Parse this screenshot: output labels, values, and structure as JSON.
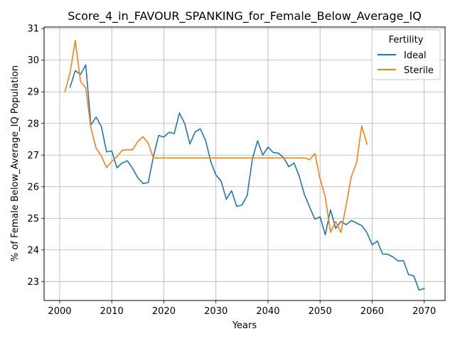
{
  "chart_data": {
    "type": "line",
    "title": "Score_4_in_FAVOUR_SPANKING_for_Female_Below_Average_IQ",
    "xlabel": "Years",
    "ylabel": "% of Female Below_Average_IQ Population",
    "xlim": [
      1997,
      2074
    ],
    "ylim": [
      22.4,
      31.05
    ],
    "xticks": [
      2000,
      2010,
      2020,
      2030,
      2040,
      2050,
      2060,
      2070
    ],
    "yticks": [
      23,
      24,
      25,
      26,
      27,
      28,
      29,
      30,
      31
    ],
    "grid": true,
    "legend": {
      "title": "Fertility",
      "placement": "top-right"
    },
    "series": [
      {
        "name": "Ideal",
        "color": "#1f77b4",
        "x": [
          2002,
          2003,
          2004,
          2005,
          2006,
          2007,
          2008,
          2009,
          2010,
          2011,
          2012,
          2013,
          2014,
          2015,
          2016,
          2017,
          2018,
          2019,
          2020,
          2021,
          2022,
          2023,
          2024,
          2025,
          2026,
          2027,
          2028,
          2029,
          2030,
          2031,
          2032,
          2033,
          2034,
          2035,
          2036,
          2037,
          2038,
          2039,
          2040,
          2041,
          2042,
          2043,
          2044,
          2045,
          2046,
          2047,
          2048,
          2049,
          2050,
          2051,
          2052,
          2053,
          2054,
          2055,
          2056,
          2057,
          2058,
          2059,
          2060,
          2061,
          2062,
          2063,
          2064,
          2065,
          2066,
          2067,
          2068,
          2069,
          2070
        ],
        "y": [
          29.15,
          29.67,
          29.55,
          29.85,
          27.95,
          28.2,
          27.9,
          27.1,
          27.13,
          26.6,
          26.75,
          26.82,
          26.58,
          26.28,
          26.1,
          26.13,
          26.95,
          27.62,
          27.57,
          27.72,
          27.68,
          28.33,
          28.0,
          27.35,
          27.73,
          27.83,
          27.47,
          26.8,
          26.37,
          26.18,
          25.6,
          25.87,
          25.38,
          25.42,
          25.72,
          26.88,
          27.45,
          27.0,
          27.25,
          27.08,
          27.06,
          26.92,
          26.63,
          26.75,
          26.33,
          25.75,
          25.35,
          24.97,
          25.05,
          24.48,
          25.27,
          24.68,
          24.9,
          24.8,
          24.93,
          24.85,
          24.77,
          24.55,
          24.16,
          24.28,
          23.87,
          23.86,
          23.78,
          23.65,
          23.66,
          23.22,
          23.18,
          22.73,
          22.78
        ]
      },
      {
        "name": "Sterile",
        "color": "#ff7f0e",
        "x": [
          2001,
          2002,
          2003,
          2004,
          2005,
          2006,
          2007,
          2008,
          2009,
          2010,
          2011,
          2012,
          2013,
          2014,
          2015,
          2016,
          2017,
          2018,
          2019,
          2020,
          2021,
          2022,
          2023,
          2024,
          2025,
          2026,
          2027,
          2028,
          2029,
          2030,
          2031,
          2032,
          2033,
          2034,
          2035,
          2036,
          2037,
          2038,
          2039,
          2040,
          2041,
          2042,
          2043,
          2044,
          2045,
          2046,
          2047,
          2048,
          2049,
          2050,
          2051,
          2052,
          2053,
          2054,
          2055,
          2056,
          2057,
          2058,
          2059
        ],
        "y": [
          29.0,
          29.6,
          30.63,
          29.32,
          29.13,
          27.85,
          27.22,
          26.97,
          26.6,
          26.8,
          26.95,
          27.15,
          27.17,
          27.16,
          27.43,
          27.58,
          27.37,
          26.91,
          26.91,
          26.91,
          26.91,
          26.91,
          26.91,
          26.91,
          26.91,
          26.91,
          26.91,
          26.91,
          26.91,
          26.91,
          26.91,
          26.91,
          26.91,
          26.91,
          26.91,
          26.91,
          26.91,
          26.91,
          26.91,
          26.91,
          26.91,
          26.91,
          26.91,
          26.91,
          26.91,
          26.91,
          26.91,
          26.85,
          27.05,
          26.25,
          25.68,
          24.56,
          24.9,
          24.55,
          25.4,
          26.32,
          26.75,
          27.92,
          27.35
        ]
      }
    ]
  }
}
